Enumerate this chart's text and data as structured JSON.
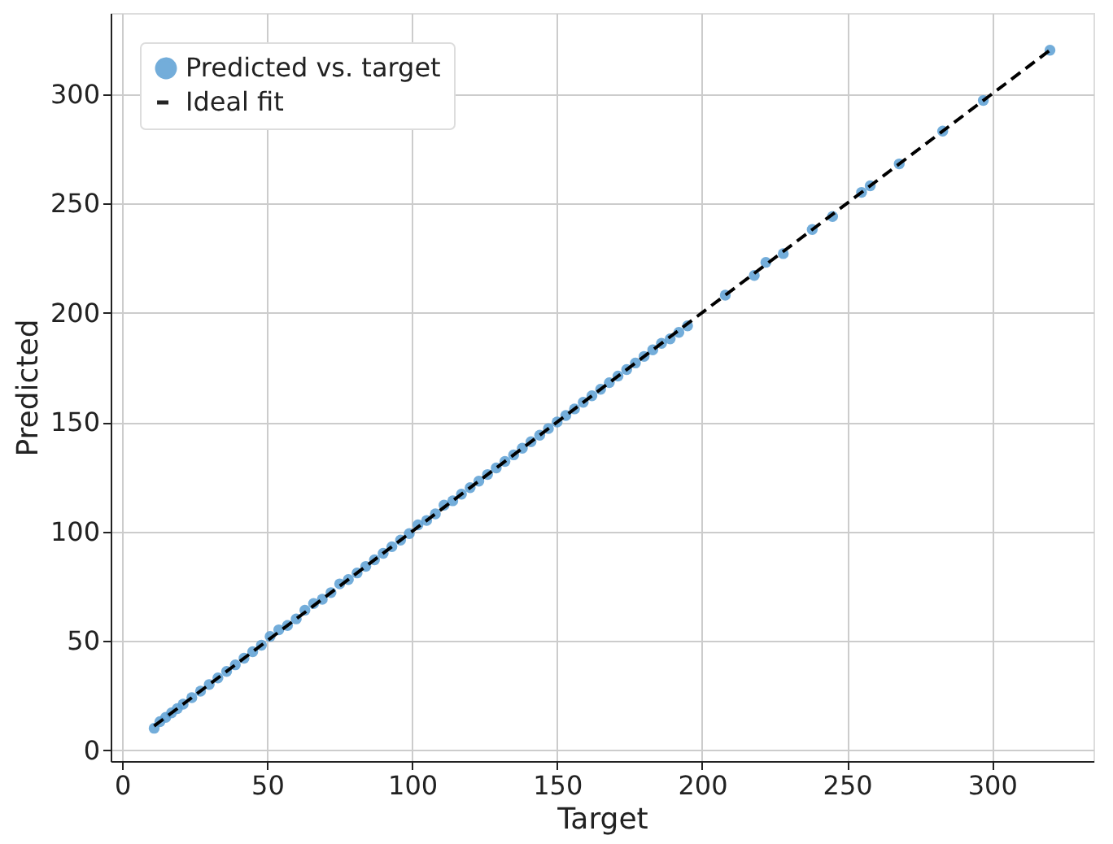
{
  "chart_data": {
    "type": "scatter",
    "xlabel": "Target",
    "ylabel": "Predicted",
    "xlim": [
      -4,
      335
    ],
    "ylim": [
      -5,
      337
    ],
    "xticks": [
      0,
      50,
      100,
      150,
      200,
      250,
      300
    ],
    "yticks": [
      0,
      50,
      100,
      150,
      200,
      250,
      300
    ],
    "grid": true,
    "legend": "top left",
    "series": [
      {
        "name": "Predicted vs. target",
        "color": "#5b9fd4",
        "marker": "circle",
        "x": [
          11,
          13,
          15,
          17,
          19,
          21,
          24,
          27,
          30,
          33,
          36,
          39,
          42,
          45,
          48,
          51,
          54,
          57,
          60,
          63,
          66,
          69,
          72,
          75,
          78,
          81,
          84,
          87,
          90,
          93,
          96,
          99,
          102,
          105,
          108,
          111,
          114,
          117,
          120,
          123,
          126,
          129,
          132,
          135,
          138,
          141,
          144,
          147,
          150,
          153,
          156,
          159,
          162,
          165,
          168,
          171,
          174,
          177,
          180,
          183,
          186,
          189,
          192,
          195,
          208,
          218,
          222,
          228,
          238,
          245,
          255,
          258,
          268,
          283,
          297,
          320
        ],
        "values": [
          10,
          13,
          15,
          17,
          19,
          21,
          24,
          27,
          30,
          33,
          36,
          39,
          42,
          45,
          48,
          52,
          55,
          57,
          60,
          64,
          67,
          69,
          72,
          76,
          78,
          81,
          84,
          87,
          90,
          93,
          96,
          99,
          103,
          105,
          108,
          112,
          114,
          117,
          120,
          123,
          126,
          129,
          132,
          135,
          138,
          141,
          144,
          147,
          150,
          153,
          156,
          159,
          162,
          165,
          168,
          171,
          174,
          177,
          180,
          183,
          186,
          188,
          191,
          194,
          208,
          217,
          223,
          227,
          238,
          244,
          255,
          258,
          268,
          283,
          297,
          320
        ]
      },
      {
        "name": "Ideal fit",
        "type": "line",
        "color": "#000000",
        "line_style": "dashed",
        "x": [
          11,
          320
        ],
        "values": [
          11,
          320
        ]
      }
    ]
  }
}
